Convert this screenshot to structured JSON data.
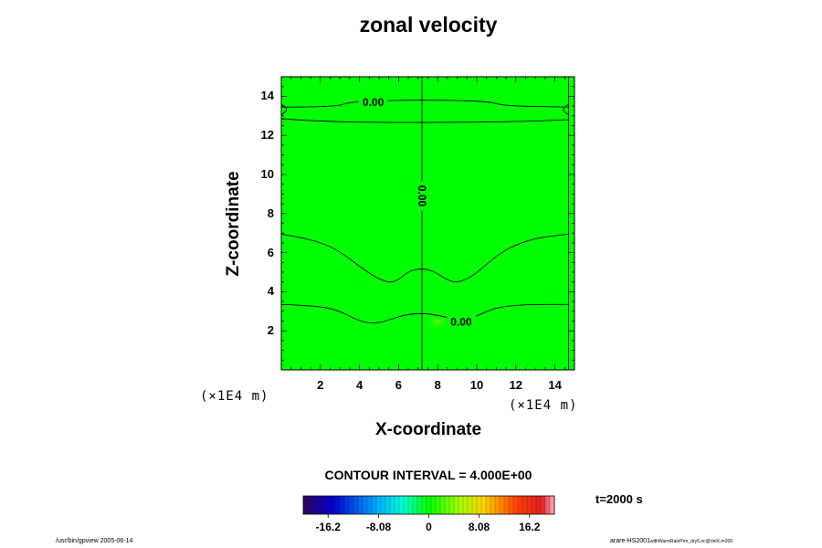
{
  "chart_data": {
    "type": "heatmap",
    "title": "zonal velocity",
    "xlabel": "X-coordinate",
    "ylabel": "Z-coordinate",
    "x_unit": "(×1E4 m)",
    "y_unit": "(×1E4 m)",
    "xlim": [
      0,
      15
    ],
    "ylim": [
      0,
      15
    ],
    "x_ticks": [
      "2",
      "4",
      "6",
      "8",
      "10",
      "12",
      "14"
    ],
    "y_ticks": [
      "2",
      "4",
      "6",
      "8",
      "10",
      "12",
      "14"
    ],
    "field_color": "#00ff00",
    "contour_labels": [
      "0.00",
      "0.00",
      "0.00"
    ],
    "contours": [
      {
        "name": "upper",
        "label": "0.00",
        "points": [
          [
            0,
            13.45
          ],
          [
            2.8,
            13.45
          ],
          [
            3.5,
            13.72
          ],
          [
            6,
            13.8
          ],
          [
            8,
            13.8
          ],
          [
            10.5,
            13.75
          ],
          [
            11.5,
            13.5
          ],
          [
            14.7,
            13.45
          ]
        ]
      },
      {
        "name": "upper-base",
        "label": "",
        "points": [
          [
            0,
            12.85
          ],
          [
            2,
            12.7
          ],
          [
            7,
            12.65
          ],
          [
            12,
            12.7
          ],
          [
            14.7,
            12.8
          ]
        ]
      },
      {
        "name": "upper-edge-left",
        "label": "",
        "points": [
          [
            0,
            13.6
          ],
          [
            0.4,
            13.35
          ],
          [
            0,
            13.05
          ]
        ]
      },
      {
        "name": "upper-edge-right",
        "label": "",
        "points": [
          [
            14.7,
            13.6
          ],
          [
            14.3,
            13.35
          ],
          [
            14.7,
            13.05
          ]
        ]
      },
      {
        "name": "middle",
        "label": "",
        "points": [
          [
            0,
            6.95
          ],
          [
            1.5,
            6.7
          ],
          [
            2.8,
            6.2
          ],
          [
            4,
            5.3
          ],
          [
            4.8,
            4.75
          ],
          [
            5.5,
            4.45
          ],
          [
            6,
            4.6
          ],
          [
            6.5,
            5.05
          ],
          [
            7.2,
            5.2
          ],
          [
            7.8,
            5.05
          ],
          [
            8.5,
            4.6
          ],
          [
            9,
            4.45
          ],
          [
            9.8,
            4.8
          ],
          [
            10.6,
            5.5
          ],
          [
            11.6,
            6.25
          ],
          [
            13,
            6.75
          ],
          [
            14.7,
            6.95
          ]
        ]
      },
      {
        "name": "lower",
        "label": "0.00",
        "points": [
          [
            0,
            3.35
          ],
          [
            1.5,
            3.3
          ],
          [
            2.8,
            3.1
          ],
          [
            3.8,
            2.6
          ],
          [
            4.4,
            2.4
          ],
          [
            5,
            2.4
          ],
          [
            5.8,
            2.65
          ],
          [
            6.5,
            2.85
          ],
          [
            7.2,
            2.9
          ],
          [
            8,
            2.8
          ],
          [
            8.8,
            2.6
          ],
          [
            9.6,
            2.6
          ],
          [
            10.2,
            2.85
          ],
          [
            11,
            3.2
          ],
          [
            12.5,
            3.35
          ],
          [
            14.7,
            3.35
          ]
        ]
      },
      {
        "name": "vertical-center",
        "label": "0.00",
        "points": [
          [
            7.2,
            0
          ],
          [
            7.2,
            15
          ]
        ]
      },
      {
        "name": "vertical-right",
        "label": "",
        "points": [
          [
            14.7,
            0
          ],
          [
            14.7,
            15
          ]
        ]
      }
    ],
    "colorbar": {
      "ticks": [
        "-16.2",
        "-8.08",
        "0",
        "8.08",
        "16.2"
      ],
      "tick_values": [
        -16.2,
        -8.08,
        0,
        8.08,
        16.2
      ],
      "range": [
        -20.2,
        20.2
      ],
      "contour_interval": "CONTOUR INTERVAL = 4.000E+00"
    },
    "time_label": "t=2000 s"
  },
  "footer": {
    "left": "/usr/bin/gpview 2005-06-14",
    "right_main": "arare-HS2001",
    "right_sub": "withWarmRainPrm_dry5.nc@VelX,t=200"
  }
}
